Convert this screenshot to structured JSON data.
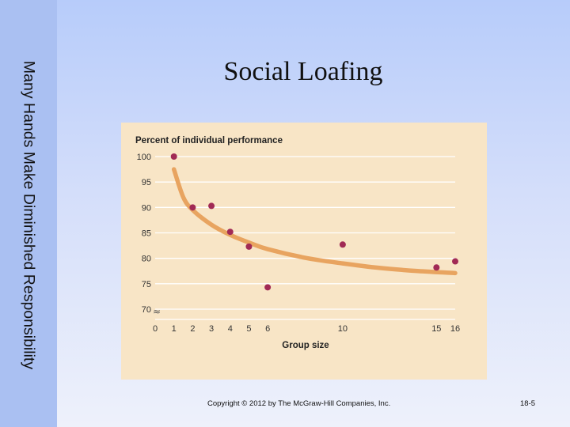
{
  "slide": {
    "side_title": "Many Hands Make Diminished Responsibility",
    "title": "Social Loafing",
    "copyright": "Copyright © 2012 by The McGraw-Hill Companies, Inc.",
    "page_number": "18-5"
  },
  "colors": {
    "panel": "#f8e5c6",
    "curve": "#e8a460",
    "point": "#a12a55",
    "grid": "#ffffff"
  },
  "chart_data": {
    "type": "scatter",
    "title": "Percent of individual performance",
    "xlabel": "Group size",
    "ylabel": "",
    "x_ticks": [
      0,
      1,
      2,
      3,
      4,
      5,
      6,
      10,
      15,
      16
    ],
    "y_ticks": [
      70,
      75,
      80,
      85,
      90,
      95,
      100
    ],
    "xlim": [
      0,
      16
    ],
    "ylim": [
      68,
      100
    ],
    "axis_break": "≈",
    "grid": true,
    "series": [
      {
        "name": "",
        "points": [
          {
            "x": 1,
            "y": 100
          },
          {
            "x": 2,
            "y": 90
          },
          {
            "x": 3,
            "y": 90.3
          },
          {
            "x": 4,
            "y": 85.2
          },
          {
            "x": 5,
            "y": 82.3
          },
          {
            "x": 6,
            "y": 74.3
          },
          {
            "x": 10,
            "y": 82.7
          },
          {
            "x": 15,
            "y": 78.2
          },
          {
            "x": 16,
            "y": 79.4
          }
        ]
      }
    ],
    "trend_curve": [
      {
        "x": 1,
        "y": 97.5
      },
      {
        "x": 1.5,
        "y": 92
      },
      {
        "x": 2,
        "y": 89.5
      },
      {
        "x": 3,
        "y": 86.6
      },
      {
        "x": 4,
        "y": 84.6
      },
      {
        "x": 5,
        "y": 83.1
      },
      {
        "x": 6,
        "y": 81.8
      },
      {
        "x": 8,
        "y": 80.1
      },
      {
        "x": 10,
        "y": 79
      },
      {
        "x": 12,
        "y": 78.1
      },
      {
        "x": 14,
        "y": 77.5
      },
      {
        "x": 16,
        "y": 77.1
      }
    ]
  }
}
